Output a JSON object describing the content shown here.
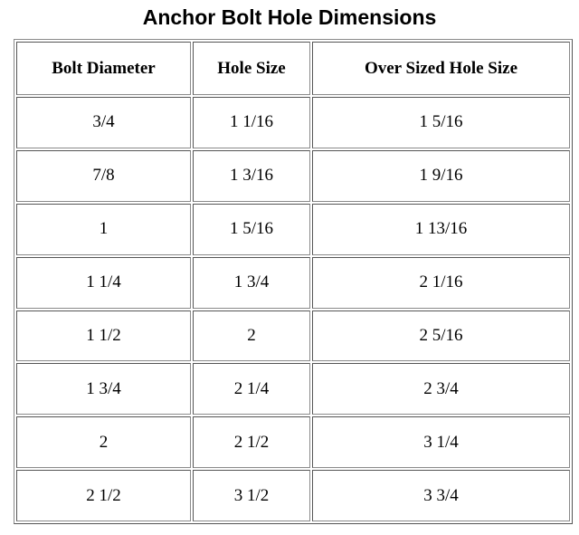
{
  "title": "Anchor Bolt Hole Dimensions",
  "table": {
    "header": [
      "Bolt Diameter",
      "Hole Size",
      "Over Sized Hole Size"
    ],
    "rows": [
      [
        "3/4",
        "1 1/16",
        "1 5/16"
      ],
      [
        "7/8",
        "1 3/16",
        "1 9/16"
      ],
      [
        "1",
        "1 5/16",
        "1 13/16"
      ],
      [
        "1 1/4",
        "1 3/4",
        "2 1/16"
      ],
      [
        "1 1/2",
        "2",
        "2 5/16"
      ],
      [
        "1 3/4",
        "2 1/4",
        "2 3/4"
      ],
      [
        "2",
        "2 1/2",
        "3 1/4"
      ],
      [
        "2 1/2",
        "3 1/2",
        "3 3/4"
      ]
    ]
  }
}
